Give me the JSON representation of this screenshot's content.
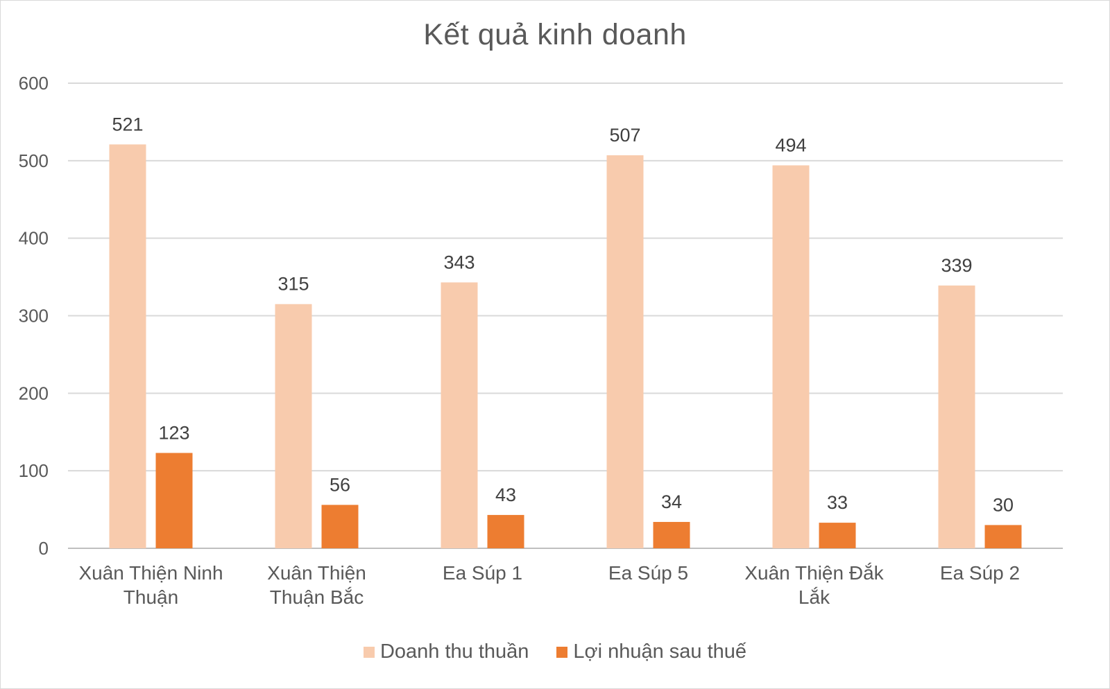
{
  "chart_data": {
    "type": "bar",
    "title": "Kết quả kinh doanh",
    "xlabel": "",
    "ylabel": "",
    "ylim": [
      0,
      600
    ],
    "yticks": [
      0,
      100,
      200,
      300,
      400,
      500,
      600
    ],
    "grid": true,
    "legend_position": "bottom",
    "categories": [
      [
        "Xuân Thiện Ninh",
        "Thuận"
      ],
      [
        "Xuân Thiện",
        "Thuận Bắc"
      ],
      [
        "Ea Súp 1"
      ],
      [
        "Ea Súp 5"
      ],
      [
        "Xuân Thiện Đắk",
        "Lắk"
      ],
      [
        "Ea Súp 2"
      ]
    ],
    "series": [
      {
        "name": "Doanh thu thuần",
        "color": "#f8cbad",
        "values": [
          521,
          315,
          343,
          507,
          494,
          339
        ]
      },
      {
        "name": "Lợi nhuận sau thuế",
        "color": "#ed7d31",
        "values": [
          123,
          56,
          43,
          34,
          33,
          30
        ]
      }
    ]
  }
}
